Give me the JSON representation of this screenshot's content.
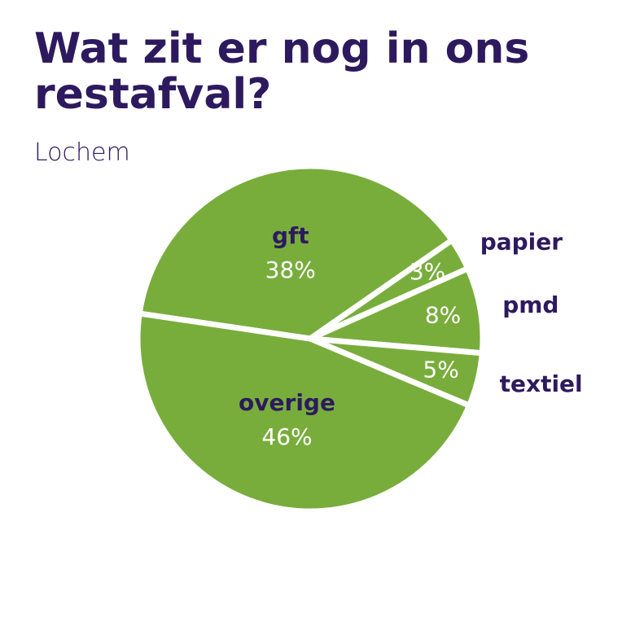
{
  "chart_data": {
    "type": "pie",
    "title": "Wat zit er nog in ons restafval?",
    "subtitle": "Lochem",
    "categories": [
      "gft",
      "papier",
      "pmd",
      "textiel",
      "overige"
    ],
    "values": [
      38,
      3,
      8,
      5,
      46
    ],
    "value_labels": [
      "38%",
      "3%",
      "8%",
      "5%",
      "46%"
    ],
    "color": "#78ad3c"
  }
}
